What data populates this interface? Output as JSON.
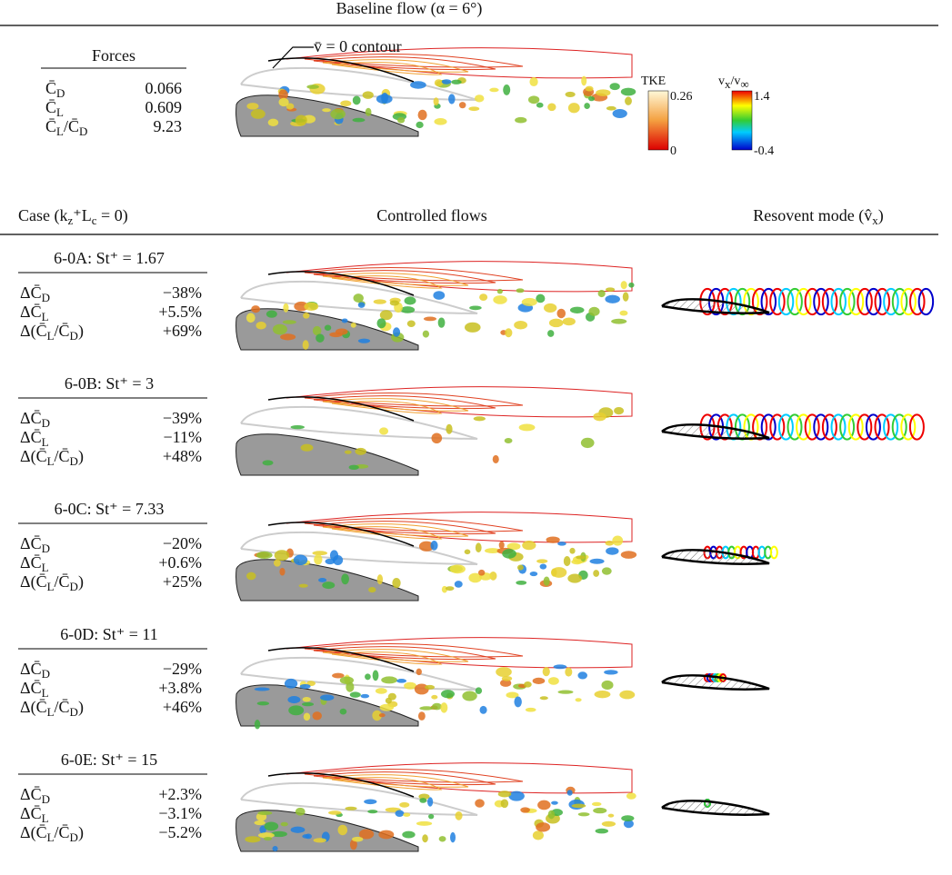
{
  "header": {
    "title": "Baseline flow (α = 6°)"
  },
  "baseline": {
    "forces_title": "Forces",
    "rows": [
      {
        "label": [
          "C̄",
          "D"
        ],
        "value": "0.066"
      },
      {
        "label": [
          "C̄",
          "L"
        ],
        "value": "0.609"
      },
      {
        "label": [
          "C̄",
          "L",
          "/C̄",
          "D"
        ],
        "value": "9.23"
      }
    ],
    "contour_label": "v̄ = 0 contour",
    "colorbars": [
      {
        "label": [
          "TKE"
        ],
        "max": "0.26",
        "min": "0"
      },
      {
        "label": [
          "v",
          "x",
          "/v",
          "∞"
        ],
        "max": "1.4",
        "min": "-0.4"
      }
    ]
  },
  "columns": [
    [
      "Case (k",
      "z",
      "⁺L",
      "c",
      " = 0)"
    ],
    [
      "Controlled flows"
    ],
    [
      "Resovent mode (v̂",
      "x",
      ")"
    ]
  ],
  "cases": [
    {
      "title": "6-0A: St⁺ = 1.67",
      "rows": [
        {
          "label": [
            "ΔC̄",
            "D"
          ],
          "value": "−38%"
        },
        {
          "label": [
            "ΔC̄",
            "L"
          ],
          "value": "+5.5%"
        },
        {
          "label": [
            "Δ(C̄",
            "L",
            "/C̄",
            "D",
            ")"
          ],
          "value": "+69%"
        }
      ]
    },
    {
      "title": "6-0B: St⁺ = 3",
      "rows": [
        {
          "label": [
            "ΔC̄",
            "D"
          ],
          "value": "−39%"
        },
        {
          "label": [
            "ΔC̄",
            "L"
          ],
          "value": "−11%"
        },
        {
          "label": [
            "Δ(C̄",
            "L",
            "/C̄",
            "D",
            ")"
          ],
          "value": "+48%"
        }
      ]
    },
    {
      "title": "6-0C: St⁺ = 7.33",
      "rows": [
        {
          "label": [
            "ΔC̄",
            "D"
          ],
          "value": "−20%"
        },
        {
          "label": [
            "ΔC̄",
            "L"
          ],
          "value": "+0.6%"
        },
        {
          "label": [
            "Δ(C̄",
            "L",
            "/C̄",
            "D",
            ")"
          ],
          "value": "+25%"
        }
      ]
    },
    {
      "title": "6-0D: St⁺ = 11",
      "rows": [
        {
          "label": [
            "ΔC̄",
            "D"
          ],
          "value": "−29%"
        },
        {
          "label": [
            "ΔC̄",
            "L"
          ],
          "value": "+3.8%"
        },
        {
          "label": [
            "Δ(C̄",
            "L",
            "/C̄",
            "D",
            ")"
          ],
          "value": "+46%"
        }
      ]
    },
    {
      "title": "6-0E: St⁺ = 15",
      "rows": [
        {
          "label": [
            "ΔC̄",
            "D"
          ],
          "value": "+2.3%"
        },
        {
          "label": [
            "ΔC̄",
            "L"
          ],
          "value": "−3.1%"
        },
        {
          "label": [
            "Δ(C̄",
            "L",
            "/C̄",
            "D",
            ")"
          ],
          "value": "−5.2%"
        }
      ]
    }
  ]
}
